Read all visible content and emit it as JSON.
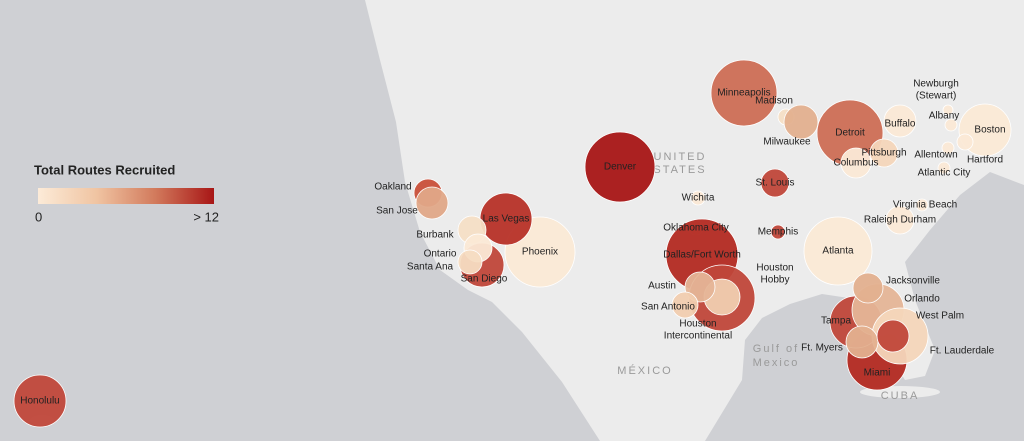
{
  "legend": {
    "title": "Total Routes Recruited",
    "min_label": "0",
    "max_label": "> 12",
    "colors": [
      "#fcebd8",
      "#f0c4a2",
      "#d27a5c",
      "#a81616"
    ]
  },
  "map_labels": [
    "UNITED",
    "STATES",
    "MÉXICO",
    "Gulf of",
    "Mexico",
    "CUBA"
  ],
  "cities": [
    {
      "label": [
        "Honolulu"
      ],
      "color": "#c0473a"
    },
    {
      "label": [
        "Phoenix"
      ],
      "color": "#fbead6"
    },
    {
      "label": [
        "Las Vegas"
      ],
      "color": "#b73128"
    },
    {
      "label": [
        "San Diego"
      ],
      "color": "#c0473a"
    },
    {
      "label": [
        "Oakland"
      ],
      "color": "#c9503a"
    },
    {
      "label": [
        "San Jose"
      ],
      "color": "#e0a888"
    },
    {
      "label": [
        "Burbank"
      ],
      "color": "#f6dfc6"
    },
    {
      "label": [
        "Ontario"
      ],
      "color": "#fbe9d6"
    },
    {
      "label": [
        "Santa Ana"
      ],
      "color": "#f6dcc2"
    },
    {
      "label": [
        "Denver"
      ],
      "color": "#a81616"
    },
    {
      "label": [
        "Minneapolis"
      ],
      "color": "#cd6e55"
    },
    {
      "label": [
        "Madison"
      ],
      "color": "#f6dfc6"
    },
    {
      "label": [
        "Milwaukee"
      ],
      "color": "#e3b08f"
    },
    {
      "label": [
        "Detroit"
      ],
      "color": "#cd6e55"
    },
    {
      "label": [
        "Buffalo"
      ],
      "color": "#fbe9d6"
    },
    {
      "label": [
        "Newburgh",
        "(Stewart)"
      ],
      "color": "#fbe9d6"
    },
    {
      "label": [
        "Albany"
      ],
      "color": "#fbe9d6"
    },
    {
      "label": [
        "Boston"
      ],
      "color": "#fbead6"
    },
    {
      "label": [
        "Hartford"
      ],
      "color": "#fbe9d6"
    },
    {
      "label": [
        "Allentown"
      ],
      "color": "#fbe9d6"
    },
    {
      "label": [
        "Atlantic City"
      ],
      "color": "#fbe9d6"
    },
    {
      "label": [
        "Pittsburgh"
      ],
      "color": "#f4d6bb"
    },
    {
      "label": [
        "Columbus"
      ],
      "color": "#fbe9d6"
    },
    {
      "label": [
        "St. Louis"
      ],
      "color": "#c0473a"
    },
    {
      "label": [
        "Wichita"
      ],
      "color": "#fbe9d6"
    },
    {
      "label": [
        "Oklahoma City"
      ],
      "color": "#fbe9d6"
    },
    {
      "label": [
        "Memphis"
      ],
      "color": "#c0473a"
    },
    {
      "label": [
        "Dallas/Fort Worth"
      ],
      "color": "#b32a22"
    },
    {
      "label": [
        "Houston",
        "Hobby"
      ],
      "color": "#c0473a"
    },
    {
      "label": [
        "Houston",
        "Intercontinental"
      ],
      "color": "#f0cdb0"
    },
    {
      "label": [
        "Austin"
      ],
      "color": "#e5b597"
    },
    {
      "label": [
        "San Antonio"
      ],
      "color": "#f1ceb0"
    },
    {
      "label": [
        "Atlanta"
      ],
      "color": "#fbead6"
    },
    {
      "label": [
        "Virginia Beach"
      ],
      "color": "#fbe9d6"
    },
    {
      "label": [
        "Raleigh Durham"
      ],
      "color": "#fbe9d6"
    },
    {
      "label": [
        "Miami"
      ],
      "color": "#b32a22"
    },
    {
      "label": [
        "Tampa"
      ],
      "color": "#c0473a"
    },
    {
      "label": [
        "Orlando"
      ],
      "color": "#e5b597"
    },
    {
      "label": [
        "West Palm"
      ],
      "color": "#f4d6bb"
    },
    {
      "label": [
        "Ft. Myers"
      ],
      "color": "#e3b08f"
    },
    {
      "label": [
        "Jacksonville"
      ],
      "color": "#e3b08f"
    },
    {
      "label": [
        "Ft. Lauderdale"
      ],
      "color": "#c0473a"
    }
  ]
}
